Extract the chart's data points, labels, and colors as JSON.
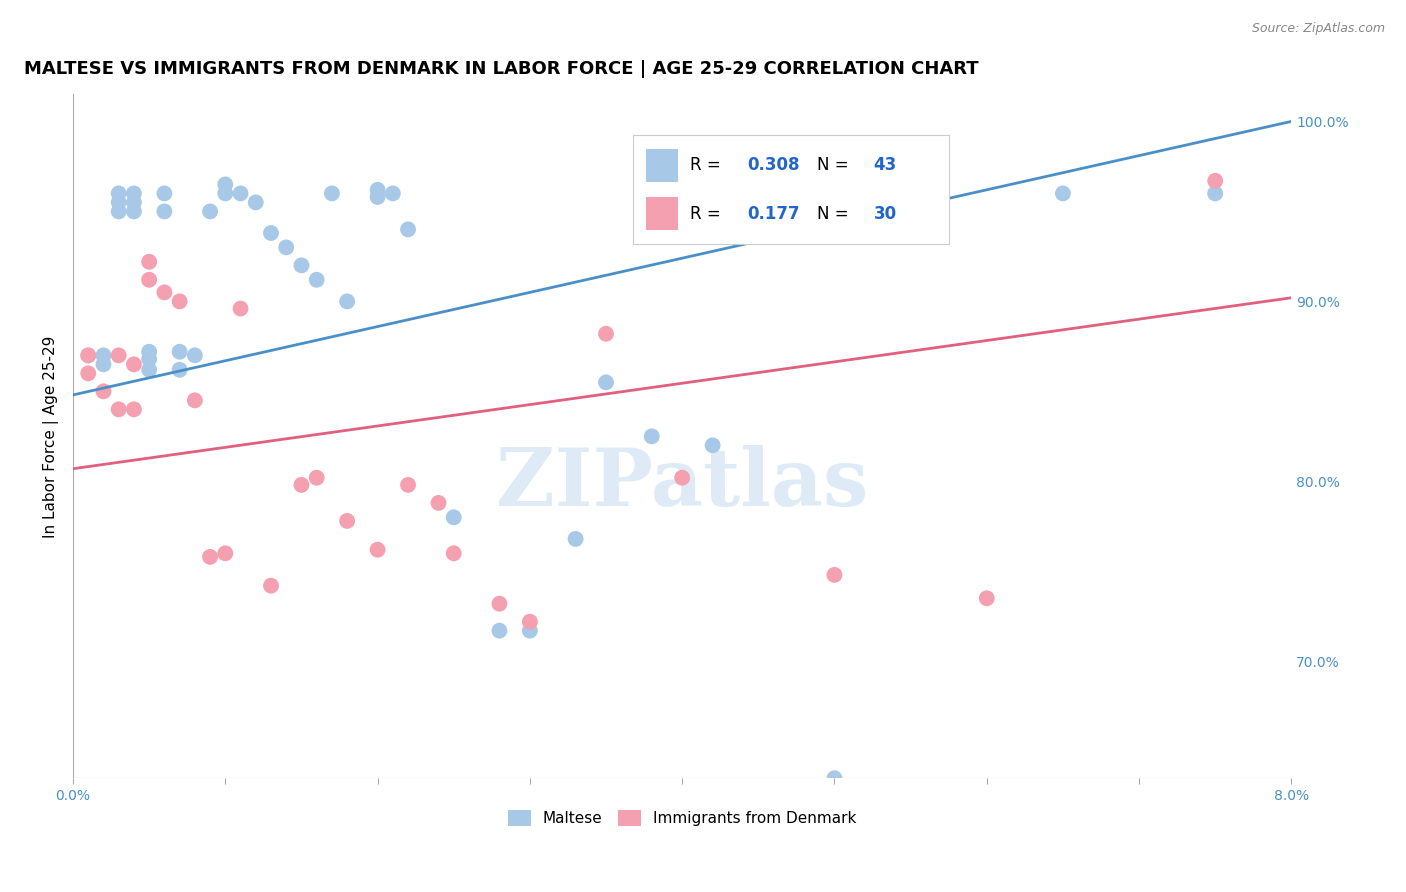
{
  "title": "MALTESE VS IMMIGRANTS FROM DENMARK IN LABOR FORCE | AGE 25-29 CORRELATION CHART",
  "source": "Source: ZipAtlas.com",
  "ylabel": "In Labor Force | Age 25-29",
  "right_yticks": [
    "70.0%",
    "80.0%",
    "90.0%",
    "100.0%"
  ],
  "right_ytick_vals": [
    0.7,
    0.8,
    0.9,
    1.0
  ],
  "watermark": "ZIPatlas",
  "legend_entry1": {
    "label": "Maltese",
    "R": "0.308",
    "N": "43",
    "color": "#a8c8e8"
  },
  "legend_entry2": {
    "label": "Immigrants from Denmark",
    "R": "0.177",
    "N": "30",
    "color": "#f4a0b0"
  },
  "blue_scatter_x": [
    0.001,
    0.002,
    0.002,
    0.003,
    0.003,
    0.003,
    0.004,
    0.004,
    0.004,
    0.005,
    0.005,
    0.005,
    0.006,
    0.006,
    0.007,
    0.007,
    0.008,
    0.009,
    0.01,
    0.01,
    0.011,
    0.012,
    0.013,
    0.014,
    0.015,
    0.016,
    0.017,
    0.018,
    0.02,
    0.02,
    0.021,
    0.022,
    0.025,
    0.028,
    0.03,
    0.033,
    0.035,
    0.038,
    0.042,
    0.05,
    0.055,
    0.065,
    0.075
  ],
  "blue_scatter_y": [
    0.87,
    0.87,
    0.865,
    0.96,
    0.955,
    0.95,
    0.96,
    0.955,
    0.95,
    0.872,
    0.868,
    0.862,
    0.96,
    0.95,
    0.872,
    0.862,
    0.87,
    0.95,
    0.965,
    0.96,
    0.96,
    0.955,
    0.938,
    0.93,
    0.92,
    0.912,
    0.96,
    0.9,
    0.962,
    0.958,
    0.96,
    0.94,
    0.78,
    0.717,
    0.717,
    0.768,
    0.855,
    0.825,
    0.82,
    0.635,
    0.963,
    0.96,
    0.96
  ],
  "pink_scatter_x": [
    0.001,
    0.001,
    0.002,
    0.003,
    0.003,
    0.004,
    0.004,
    0.005,
    0.005,
    0.006,
    0.007,
    0.008,
    0.009,
    0.01,
    0.011,
    0.013,
    0.015,
    0.016,
    0.018,
    0.02,
    0.022,
    0.024,
    0.025,
    0.028,
    0.03,
    0.035,
    0.04,
    0.05,
    0.06,
    0.075
  ],
  "pink_scatter_y": [
    0.87,
    0.86,
    0.85,
    0.87,
    0.84,
    0.865,
    0.84,
    0.922,
    0.912,
    0.905,
    0.9,
    0.845,
    0.758,
    0.76,
    0.896,
    0.742,
    0.798,
    0.802,
    0.778,
    0.762,
    0.798,
    0.788,
    0.76,
    0.732,
    0.722,
    0.882,
    0.802,
    0.748,
    0.735,
    0.967
  ],
  "blue_line_x": [
    0.0,
    0.08
  ],
  "blue_line_y": [
    0.848,
    1.0
  ],
  "pink_line_x": [
    0.0,
    0.08
  ],
  "pink_line_y": [
    0.807,
    0.902
  ],
  "xlim": [
    0.0,
    0.08
  ],
  "ylim": [
    0.635,
    1.015
  ],
  "blue_color": "#a8c8e8",
  "pink_color": "#f4a0b0",
  "blue_line_color": "#4a90c8",
  "pink_line_color": "#e06080",
  "title_fontsize": 13,
  "axis_label_fontsize": 11,
  "tick_fontsize": 10,
  "background_color": "#ffffff",
  "grid_color": "#d8d8d8",
  "legend_R_color": "#2266cc",
  "legend_N_color": "#2266cc"
}
